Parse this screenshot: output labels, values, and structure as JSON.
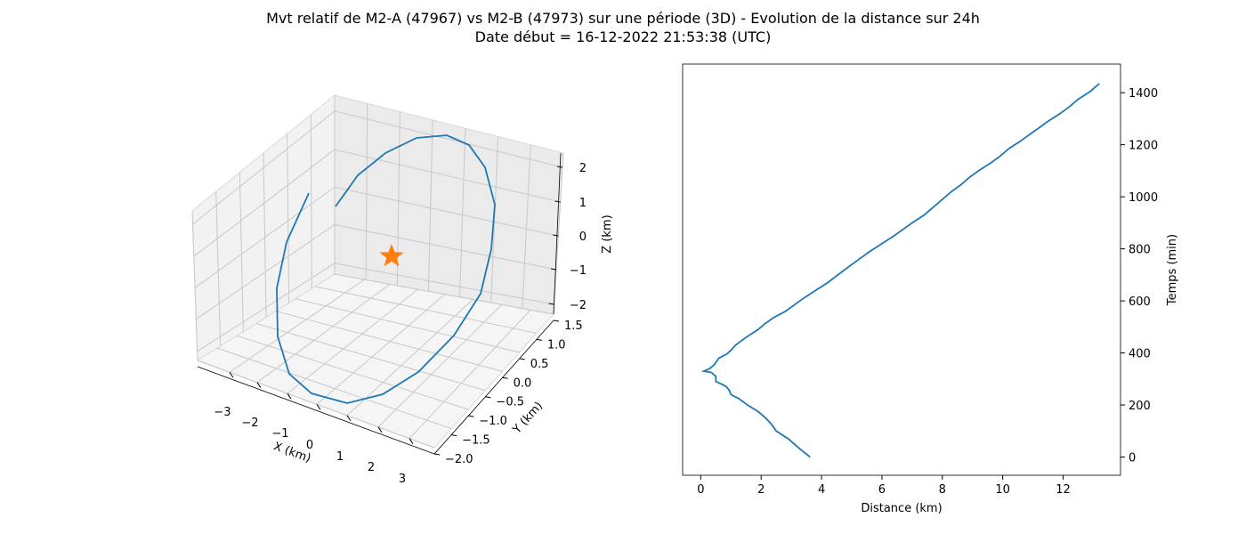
{
  "title_line1": "Mvt relatif de M2-A (47967) vs M2-B (47973) sur une période (3D) - Evolution de la distance sur 24h",
  "title_line2": "Date début = 16-12-2022 21:53:38 (UTC)",
  "chart_data": [
    {
      "type": "line3d",
      "xlabel": "X (km)",
      "ylabel": "Y (km)",
      "zlabel": "Z (km)",
      "x_ticks": [
        "−3",
        "−2",
        "−1",
        "0",
        "1",
        "2",
        "3"
      ],
      "y_ticks": [
        "−2.0",
        "−1.5",
        "−1.0",
        "−0.5",
        "0.0",
        "0.5",
        "1.0",
        "1.5"
      ],
      "z_ticks": [
        "−2",
        "−1",
        "0",
        "1",
        "2"
      ],
      "line_color": "#1f77b4",
      "marker": "star",
      "marker_color": "#ff7f0e",
      "grid": true
    },
    {
      "type": "line",
      "xlabel": "Distance (km)",
      "ylabel": "Temps (min)",
      "xlim": [
        -0.6,
        13.9
      ],
      "ylim": [
        -70,
        1510
      ],
      "x_ticks": [
        0,
        2,
        4,
        6,
        8,
        10,
        12
      ],
      "y_ticks": [
        0,
        200,
        400,
        600,
        800,
        1000,
        1200,
        1400
      ],
      "yaxis_position": "right",
      "line_color": "#1f77b4",
      "series": [
        {
          "x": [
            3.62,
            3.3,
            2.9,
            2.5,
            2.35,
            2.15,
            1.9,
            1.55,
            1.25,
            1.0,
            0.95,
            0.85,
            0.7,
            0.5,
            0.5,
            0.35,
            0.1,
            0.3,
            0.45,
            0.6,
            0.85,
            1.0,
            1.15,
            1.5,
            1.9,
            2.1,
            2.4,
            2.8,
            3.05,
            3.4,
            3.8,
            4.2,
            4.6,
            5.0,
            5.3,
            5.6,
            6.0,
            6.4,
            6.7,
            7.0,
            7.4,
            7.7,
            8.0,
            8.3,
            8.6,
            8.9,
            9.2,
            9.6,
            9.9,
            10.2,
            10.6,
            10.9,
            11.2,
            11.5,
            11.9,
            12.2,
            12.5,
            12.9,
            13.2
          ],
          "y": [
            0,
            30,
            70,
            100,
            125,
            150,
            175,
            200,
            225,
            240,
            255,
            270,
            280,
            290,
            310,
            325,
            330,
            340,
            355,
            380,
            395,
            410,
            430,
            460,
            490,
            510,
            535,
            560,
            580,
            610,
            640,
            670,
            705,
            740,
            765,
            790,
            820,
            850,
            875,
            900,
            930,
            960,
            990,
            1020,
            1045,
            1075,
            1100,
            1130,
            1155,
            1185,
            1215,
            1240,
            1265,
            1290,
            1320,
            1345,
            1375,
            1405,
            1435
          ]
        }
      ]
    }
  ]
}
